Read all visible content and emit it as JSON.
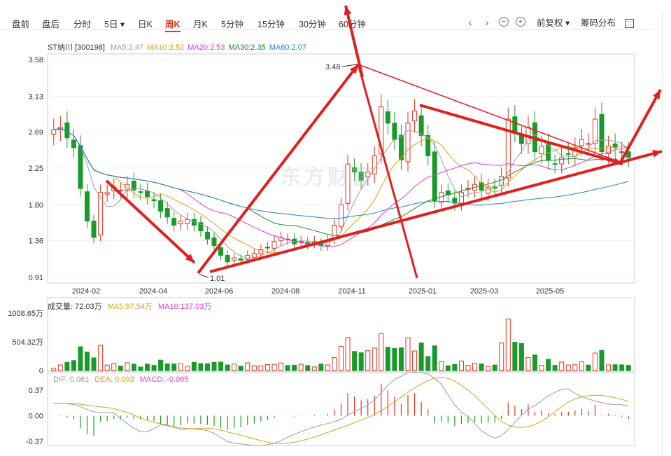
{
  "toolbar": {
    "tabs": [
      "盘前",
      "盘后",
      "分时",
      "5日",
      "日K",
      "周K",
      "月K",
      "5分钟",
      "15分钟",
      "30分钟",
      "60分钟"
    ],
    "active_tab": "周K",
    "dropdown_tab": "5日",
    "fuquan_label": "前复权",
    "chip_label": "筹码分布"
  },
  "stock": {
    "name_code": "ST纳川 [300198]",
    "ma": [
      {
        "label": "MA5:2.47",
        "color": "#9e9e9e"
      },
      {
        "label": "MA10:2.52",
        "color": "#d9a21b"
      },
      {
        "label": "MA20:2.53",
        "color": "#e23ad8"
      },
      {
        "label": "MA30:2.35",
        "color": "#1f8a2e"
      },
      {
        "label": "MA60:2.07",
        "color": "#2b7fd3"
      }
    ]
  },
  "price_axis": [
    "3.58",
    "3.13",
    "2.69",
    "2.25",
    "1.80",
    "1.36",
    "0.91"
  ],
  "date_axis": [
    "2024-02",
    "2024-04",
    "2024-06",
    "2024-08",
    "2024-11",
    "2025-01",
    "2025-03",
    "2025-05"
  ],
  "annotations": {
    "high": "3.48",
    "low": "1.01"
  },
  "volume": {
    "title": "成交量: 72.03万",
    "ma5": "MA5:97.54万",
    "ma10": "MA10:137.03万",
    "axis": [
      "1008.65万",
      "504.32万",
      "0"
    ]
  },
  "macd": {
    "dif": "DIF: 0.061",
    "dea": "DEA: 0.093",
    "macd": "MACD: -0.065",
    "axis": [
      "0.37",
      "0.00",
      "-0.37"
    ]
  },
  "watermark": "东方财富",
  "colors": {
    "up": "#e0321f",
    "down": "#1a9a2a",
    "accent": "#e0321f"
  },
  "chart_data": {
    "type": "line",
    "title": "",
    "closes": [
      2.72,
      2.75,
      2.62,
      2.5,
      2.0,
      1.6,
      1.4,
      1.95,
      1.95,
      2.02,
      1.98,
      2.05,
      1.98,
      1.95,
      1.9,
      1.85,
      1.72,
      1.65,
      1.55,
      1.6,
      1.62,
      1.55,
      1.48,
      1.38,
      1.3,
      1.18,
      1.1,
      1.15,
      1.12,
      1.18,
      1.2,
      1.25,
      1.28,
      1.35,
      1.4,
      1.38,
      1.32,
      1.35,
      1.32,
      1.35,
      1.3,
      1.36,
      1.55,
      1.8,
      2.3,
      2.2,
      2.1,
      2.2,
      2.4,
      3.0,
      2.8,
      2.6,
      2.35,
      2.8,
      2.95,
      2.65,
      2.4,
      1.85,
      1.95,
      1.92,
      1.82,
      1.95,
      2.0,
      2.05,
      1.98,
      2.02,
      2.0,
      2.15,
      2.85,
      2.7,
      2.55,
      2.75,
      2.45,
      2.52,
      2.35,
      2.3,
      2.38,
      2.42,
      2.5,
      2.6,
      2.55,
      2.85,
      2.45,
      2.52,
      2.5,
      2.45,
      2.38
    ]
  }
}
